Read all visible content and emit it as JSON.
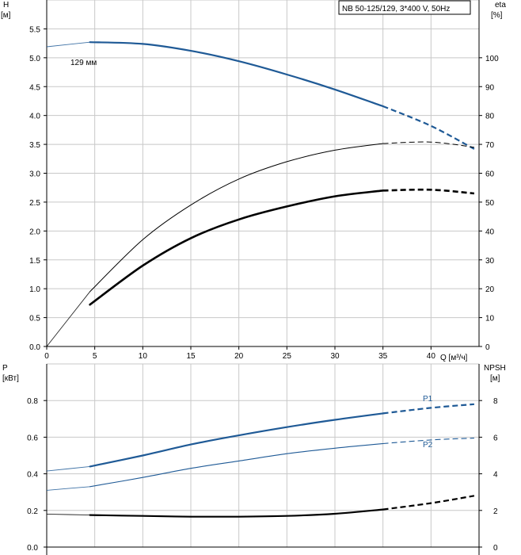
{
  "title_box": "NB 50-125/129, 3*400 V, 50Hz",
  "top_chart": {
    "left_axis_label": "H",
    "left_axis_unit": "[м]",
    "right_axis_label": "eta",
    "right_axis_unit": "[%]",
    "x_axis_label": "Q [м³/ч]",
    "curve_label": "129 мм"
  },
  "bottom_chart": {
    "left_axis_label": "P",
    "left_axis_unit": "[кВт]",
    "right_axis_label": "NPSH",
    "right_axis_unit": "[м]",
    "p1_label": "P1",
    "p2_label": "P2"
  },
  "colors": {
    "head": "#1f5a96",
    "power": "#1f5a96",
    "eta": "#000000",
    "npsh": "#000000",
    "grid": "#c8c8c8"
  },
  "chart_data": [
    {
      "type": "line",
      "xlabel": "Q [м³/ч]",
      "ylabel": "H [м]",
      "y2label": "eta [%]",
      "xlim": [
        0,
        45
      ],
      "ylim": [
        0,
        6
      ],
      "y2lim": [
        0,
        120
      ],
      "x_ticks": [
        0,
        5,
        10,
        15,
        20,
        25,
        30,
        35,
        40
      ],
      "y_ticks": [
        0.0,
        0.5,
        1.0,
        1.5,
        2.0,
        2.5,
        3.0,
        3.5,
        4.0,
        4.5,
        5.0,
        5.5
      ],
      "y2_ticks": [
        0,
        10,
        20,
        30,
        40,
        50,
        60,
        70,
        80,
        90,
        100
      ],
      "grid": true,
      "series": [
        {
          "name": "129 мм",
          "axis": "left",
          "style": "head",
          "x": [
            0,
            4.5,
            10,
            15,
            20,
            25,
            30,
            35,
            40,
            44.5
          ],
          "y": [
            5.19,
            5.27,
            5.24,
            5.12,
            4.94,
            4.71,
            4.45,
            4.16,
            3.82,
            3.42
          ],
          "dashed_from": 35
        },
        {
          "axis": "right",
          "style": "eta-thick",
          "x": [
            4.5,
            10,
            15,
            20,
            25,
            30,
            35,
            40,
            44.5
          ],
          "y": [
            14.5,
            28,
            37.5,
            44,
            48.5,
            52,
            54,
            54.3,
            53
          ],
          "dashed_from": 35
        },
        {
          "axis": "right",
          "style": "eta-thin",
          "x": [
            0,
            4.5,
            10,
            15,
            20,
            25,
            30,
            35,
            40,
            44.5
          ],
          "y": [
            0,
            19,
            37,
            49,
            58,
            64,
            68,
            70.3,
            70.8,
            69
          ],
          "dashed_from": 35
        }
      ]
    },
    {
      "type": "line",
      "xlabel": "",
      "ylabel": "P [кВт]",
      "y2label": "NPSH [м]",
      "xlim": [
        0,
        45
      ],
      "ylim": [
        0,
        1.0
      ],
      "y2lim": [
        0,
        10
      ],
      "y_ticks": [
        0.0,
        0.2,
        0.4,
        0.6,
        0.8
      ],
      "y2_ticks": [
        0,
        2,
        4,
        6,
        8
      ],
      "grid": true,
      "series": [
        {
          "name": "P1",
          "axis": "left",
          "style": "p1",
          "x": [
            0,
            4.5,
            10,
            15,
            20,
            25,
            30,
            35,
            40,
            44.5
          ],
          "y": [
            0.415,
            0.44,
            0.5,
            0.56,
            0.61,
            0.655,
            0.695,
            0.73,
            0.76,
            0.78
          ],
          "dashed_from": 35
        },
        {
          "name": "P2",
          "axis": "left",
          "style": "p2",
          "x": [
            0,
            4.5,
            10,
            15,
            20,
            25,
            30,
            35,
            40,
            44.5
          ],
          "y": [
            0.31,
            0.33,
            0.38,
            0.43,
            0.47,
            0.51,
            0.54,
            0.565,
            0.585,
            0.595
          ],
          "dashed_from": 35
        },
        {
          "axis": "right",
          "style": "npsh",
          "x": [
            0,
            4.5,
            10,
            15,
            20,
            25,
            30,
            35,
            40,
            44.5
          ],
          "y": [
            1.8,
            1.75,
            1.7,
            1.66,
            1.66,
            1.7,
            1.82,
            2.05,
            2.4,
            2.8
          ],
          "dashed_from": 35
        }
      ]
    }
  ]
}
